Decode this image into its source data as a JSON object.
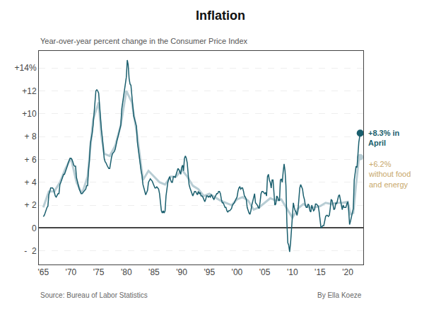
{
  "chart_data": {
    "type": "line",
    "title": "Inflation",
    "subtitle": "Year-over-year percent change in the Consumer Price Index",
    "source": "Source: Bureau of Labor Statistics",
    "byline": "By Ella Koeze",
    "xlim": [
      1964.2,
      2022.8
    ],
    "xticks": [
      {
        "value": 1965,
        "label": "'65"
      },
      {
        "value": 1970,
        "label": "'70"
      },
      {
        "value": 1975,
        "label": "'75"
      },
      {
        "value": 1980,
        "label": "'80"
      },
      {
        "value": 1985,
        "label": "'85"
      },
      {
        "value": 1990,
        "label": "'90"
      },
      {
        "value": 1995,
        "label": "'95"
      },
      {
        "value": 2000,
        "label": "'00"
      },
      {
        "value": 2005,
        "label": "'05"
      },
      {
        "value": 2010,
        "label": "'10"
      },
      {
        "value": 2015,
        "label": "'15"
      },
      {
        "value": 2020,
        "label": "'20"
      }
    ],
    "ylim": [
      -3.2,
      15.5
    ],
    "yticks": [
      {
        "value": 14,
        "label": "+14%"
      },
      {
        "value": 12,
        "label": "+12"
      },
      {
        "value": 10,
        "label": "+10"
      },
      {
        "value": 8,
        "label": "+ 8"
      },
      {
        "value": 6,
        "label": "+ 6"
      },
      {
        "value": 4,
        "label": "+ 4"
      },
      {
        "value": 2,
        "label": "+ 2"
      },
      0,
      {
        "value": -2,
        "label": "-  2"
      }
    ],
    "grid": true,
    "series": [
      {
        "color": "#b8cdd4",
        "annotation": {
          "text": "+6.2%\nwithout food\nand energy",
          "color": "#c8a86b"
        },
        "x": [
          1965.0,
          1966.0,
          1967.0,
          1968.0,
          1969.0,
          1970.0,
          1971.0,
          1972.0,
          1973.0,
          1974.0,
          1975.0,
          1975.5,
          1976.0,
          1977.0,
          1978.0,
          1979.0,
          1980.0,
          1981.0,
          1982.0,
          1983.0,
          1984.0,
          1985.0,
          1986.0,
          1987.0,
          1988.0,
          1989.0,
          1990.0,
          1991.0,
          1992.0,
          1993.0,
          1994.0,
          1995.0,
          1996.0,
          1997.0,
          1998.0,
          1999.0,
          2000.0,
          2001.0,
          2002.0,
          2003.0,
          2004.0,
          2005.0,
          2006.0,
          2007.0,
          2008.0,
          2009.0,
          2010.0,
          2011.0,
          2012.0,
          2013.0,
          2014.0,
          2015.0,
          2016.0,
          2017.0,
          2018.0,
          2019.0,
          2020.0,
          2020.5,
          2021.0,
          2021.5,
          2022.0,
          2022.25
        ],
        "values": [
          1.8,
          3.2,
          3.2,
          4.0,
          5.2,
          6.1,
          4.0,
          3.0,
          4.5,
          9.5,
          11.0,
          8.0,
          6.5,
          6.3,
          7.2,
          9.0,
          12.0,
          11.0,
          8.0,
          4.2,
          5.0,
          4.5,
          4.0,
          3.8,
          4.5,
          4.5,
          5.1,
          4.5,
          3.7,
          3.4,
          2.8,
          3.0,
          2.7,
          2.4,
          2.2,
          2.0,
          2.5,
          2.7,
          2.4,
          1.6,
          1.8,
          2.2,
          2.6,
          2.4,
          2.5,
          1.7,
          0.9,
          1.7,
          2.1,
          1.8,
          1.8,
          1.9,
          2.2,
          2.1,
          2.2,
          2.2,
          2.3,
          1.2,
          1.3,
          3.8,
          6.0,
          6.2
        ]
      },
      {
        "color": "#1a5f6e",
        "annotation": {
          "text": "+8.3% in\nApril",
          "color": "#1a5f6e"
        },
        "x": [
          1965.0,
          1965.17,
          1965.33,
          1965.5,
          1965.67,
          1965.83,
          1966.0,
          1966.17,
          1966.33,
          1966.5,
          1966.67,
          1966.83,
          1967.0,
          1967.17,
          1967.33,
          1967.5,
          1967.67,
          1967.83,
          1968.0,
          1968.17,
          1968.33,
          1968.5,
          1968.67,
          1968.83,
          1969.0,
          1969.17,
          1969.33,
          1969.5,
          1969.67,
          1969.83,
          1970.0,
          1970.17,
          1970.33,
          1970.5,
          1970.67,
          1970.83,
          1971.0,
          1971.17,
          1971.33,
          1971.5,
          1971.67,
          1971.83,
          1972.0,
          1972.17,
          1972.33,
          1972.5,
          1972.67,
          1972.83,
          1973.0,
          1973.17,
          1973.33,
          1973.5,
          1973.67,
          1973.83,
          1974.0,
          1974.17,
          1974.33,
          1974.5,
          1974.67,
          1974.83,
          1975.0,
          1975.17,
          1975.33,
          1975.5,
          1975.67,
          1975.83,
          1976.0,
          1976.17,
          1976.33,
          1976.5,
          1976.67,
          1976.83,
          1977.0,
          1977.17,
          1977.33,
          1977.5,
          1977.67,
          1977.83,
          1978.0,
          1978.17,
          1978.33,
          1978.5,
          1978.67,
          1978.83,
          1979.0,
          1979.17,
          1979.33,
          1979.5,
          1979.67,
          1979.83,
          1980.0,
          1980.17,
          1980.33,
          1980.5,
          1980.67,
          1980.83,
          1981.0,
          1981.17,
          1981.33,
          1981.5,
          1981.67,
          1981.83,
          1982.0,
          1982.17,
          1982.33,
          1982.5,
          1982.67,
          1982.83,
          1983.0,
          1983.17,
          1983.33,
          1983.5,
          1983.67,
          1983.83,
          1984.0,
          1984.17,
          1984.33,
          1984.5,
          1984.67,
          1984.83,
          1985.0,
          1985.17,
          1985.33,
          1985.5,
          1985.67,
          1985.83,
          1986.0,
          1986.17,
          1986.33,
          1986.5,
          1986.67,
          1986.83,
          1987.0,
          1987.17,
          1987.33,
          1987.5,
          1987.67,
          1987.83,
          1988.0,
          1988.17,
          1988.33,
          1988.5,
          1988.67,
          1988.83,
          1989.0,
          1989.17,
          1989.33,
          1989.5,
          1989.67,
          1989.83,
          1990.0,
          1990.17,
          1990.33,
          1990.5,
          1990.67,
          1990.83,
          1991.0,
          1991.17,
          1991.33,
          1991.5,
          1991.67,
          1991.83,
          1992.0,
          1992.17,
          1992.33,
          1992.5,
          1992.67,
          1992.83,
          1993.0,
          1993.17,
          1993.33,
          1993.5,
          1993.67,
          1993.83,
          1994.0,
          1994.17,
          1994.33,
          1994.5,
          1994.67,
          1994.83,
          1995.0,
          1995.17,
          1995.33,
          1995.5,
          1995.67,
          1995.83,
          1996.0,
          1996.17,
          1996.33,
          1996.5,
          1996.67,
          1996.83,
          1997.0,
          1997.17,
          1997.33,
          1997.5,
          1997.67,
          1997.83,
          1998.0,
          1998.17,
          1998.33,
          1998.5,
          1998.67,
          1998.83,
          1999.0,
          1999.17,
          1999.33,
          1999.5,
          1999.67,
          1999.83,
          2000.0,
          2000.17,
          2000.33,
          2000.5,
          2000.67,
          2000.83,
          2001.0,
          2001.17,
          2001.33,
          2001.5,
          2001.67,
          2001.83,
          2002.0,
          2002.17,
          2002.33,
          2002.5,
          2002.67,
          2002.83,
          2003.0,
          2003.17,
          2003.33,
          2003.5,
          2003.67,
          2003.83,
          2004.0,
          2004.17,
          2004.33,
          2004.5,
          2004.67,
          2004.83,
          2005.0,
          2005.17,
          2005.33,
          2005.5,
          2005.67,
          2005.83,
          2006.0,
          2006.17,
          2006.33,
          2006.5,
          2006.67,
          2006.83,
          2007.0,
          2007.17,
          2007.33,
          2007.5,
          2007.67,
          2007.83,
          2008.0,
          2008.17,
          2008.33,
          2008.5,
          2008.67,
          2008.83,
          2009.0,
          2009.17,
          2009.33,
          2009.5,
          2009.67,
          2009.83,
          2010.0,
          2010.17,
          2010.33,
          2010.5,
          2010.67,
          2010.83,
          2011.0,
          2011.17,
          2011.33,
          2011.5,
          2011.67,
          2011.83,
          2012.0,
          2012.17,
          2012.33,
          2012.5,
          2012.67,
          2012.83,
          2013.0,
          2013.17,
          2013.33,
          2013.5,
          2013.67,
          2013.83,
          2014.0,
          2014.17,
          2014.33,
          2014.5,
          2014.67,
          2014.83,
          2015.0,
          2015.17,
          2015.33,
          2015.5,
          2015.67,
          2015.83,
          2016.0,
          2016.17,
          2016.33,
          2016.5,
          2016.67,
          2016.83,
          2017.0,
          2017.17,
          2017.33,
          2017.5,
          2017.67,
          2017.83,
          2018.0,
          2018.17,
          2018.33,
          2018.5,
          2018.67,
          2018.83,
          2019.0,
          2019.17,
          2019.33,
          2019.5,
          2019.67,
          2019.83,
          2020.0,
          2020.17,
          2020.33,
          2020.5,
          2020.67,
          2020.83,
          2021.0,
          2021.17,
          2021.33,
          2021.5,
          2021.67,
          2021.83,
          2022.0,
          2022.25
        ],
        "values": [
          1.0,
          1.1,
          1.3,
          1.6,
          1.8,
          1.9,
          2.9,
          3.2,
          3.5,
          3.5,
          3.5,
          3.4,
          3.0,
          2.8,
          2.7,
          2.9,
          3.0,
          3.0,
          3.8,
          4.0,
          4.2,
          4.5,
          4.7,
          4.7,
          4.9,
          5.2,
          5.4,
          5.7,
          5.9,
          6.1,
          6.1,
          6.0,
          5.8,
          5.5,
          5.4,
          5.4,
          4.4,
          4.0,
          3.7,
          3.4,
          3.2,
          3.0,
          3.0,
          3.1,
          3.2,
          3.3,
          3.4,
          3.7,
          3.7,
          5.1,
          5.9,
          7.4,
          7.8,
          8.3,
          9.0,
          10.0,
          11.0,
          12.0,
          12.1,
          12.0,
          11.8,
          10.5,
          9.3,
          8.6,
          7.9,
          7.0,
          6.1,
          5.8,
          5.7,
          5.5,
          5.3,
          5.2,
          5.2,
          5.8,
          6.2,
          6.5,
          6.6,
          6.7,
          6.9,
          7.4,
          7.7,
          8.0,
          8.4,
          8.7,
          9.0,
          10.4,
          11.0,
          11.5,
          12.0,
          12.6,
          13.2,
          14.7,
          14.3,
          13.1,
          12.6,
          12.5,
          11.5,
          10.5,
          9.8,
          9.5,
          9.1,
          8.9,
          7.5,
          6.8,
          6.3,
          5.8,
          5.0,
          4.6,
          3.8,
          3.5,
          3.1,
          2.9,
          3.1,
          3.3,
          4.0,
          4.2,
          4.3,
          4.2,
          4.1,
          3.9,
          3.7,
          3.5,
          3.5,
          3.6,
          3.5,
          3.4,
          3.0,
          2.2,
          1.5,
          1.3,
          1.5,
          1.3,
          1.5,
          2.8,
          3.5,
          4.0,
          4.3,
          4.5,
          4.2,
          4.0,
          4.0,
          4.5,
          4.5,
          4.4,
          4.7,
          5.0,
          5.2,
          5.1,
          4.9,
          4.7,
          5.3,
          5.5,
          5.0,
          6.1,
          6.3,
          6.1,
          5.7,
          4.5,
          3.8,
          3.5,
          3.3,
          3.0,
          2.8,
          3.0,
          3.2,
          3.2,
          3.0,
          2.9,
          3.2,
          3.0,
          3.1,
          2.8,
          2.8,
          2.7,
          2.5,
          2.3,
          2.5,
          2.8,
          2.8,
          2.7,
          2.8,
          2.7,
          2.9,
          2.8,
          2.6,
          2.5,
          2.7,
          2.9,
          3.0,
          3.0,
          3.2,
          3.2,
          3.0,
          2.5,
          2.2,
          2.2,
          2.0,
          1.8,
          1.8,
          1.5,
          1.4,
          1.5,
          1.5,
          1.6,
          1.7,
          2.0,
          2.1,
          2.2,
          2.4,
          2.6,
          2.7,
          3.2,
          3.5,
          3.6,
          3.4,
          3.5,
          3.5,
          3.2,
          2.8,
          2.7,
          2.5,
          1.8,
          1.5,
          1.3,
          1.2,
          1.5,
          2.0,
          2.3,
          2.6,
          3.0,
          2.2,
          2.1,
          2.0,
          1.8,
          1.7,
          2.3,
          3.0,
          3.2,
          3.2,
          3.1,
          3.0,
          3.1,
          2.8,
          4.5,
          4.7,
          4.2,
          4.0,
          3.5,
          4.2,
          4.2,
          2.7,
          2.0,
          2.1,
          2.8,
          2.7,
          2.4,
          2.4,
          4.2,
          4.3,
          4.0,
          4.9,
          5.6,
          5.0,
          3.7,
          0.5,
          -1.3,
          -1.5,
          -2.1,
          -1.3,
          -0.2,
          1.5,
          2.2,
          1.8,
          1.5,
          1.4,
          1.1,
          1.5,
          2.5,
          3.5,
          3.8,
          3.6,
          3.4,
          2.8,
          2.5,
          2.0,
          1.8,
          1.8,
          2.1,
          2.0,
          1.5,
          1.4,
          2.0,
          1.7,
          1.5,
          1.6,
          2.1,
          2.1,
          2.0,
          1.9,
          1.4,
          0.8,
          0.0,
          0.1,
          0.2,
          0.2,
          0.5,
          1.0,
          1.1,
          1.1,
          1.0,
          1.1,
          1.7,
          2.5,
          2.4,
          1.9,
          1.6,
          1.7,
          2.2,
          2.1,
          2.5,
          2.8,
          2.9,
          2.5,
          2.2,
          1.6,
          2.0,
          1.8,
          1.8,
          1.8,
          2.1,
          2.3,
          1.5,
          0.3,
          0.6,
          1.0,
          1.2,
          1.7,
          4.2,
          5.0,
          5.4,
          5.3,
          6.8,
          7.5,
          8.3
        ]
      }
    ]
  }
}
